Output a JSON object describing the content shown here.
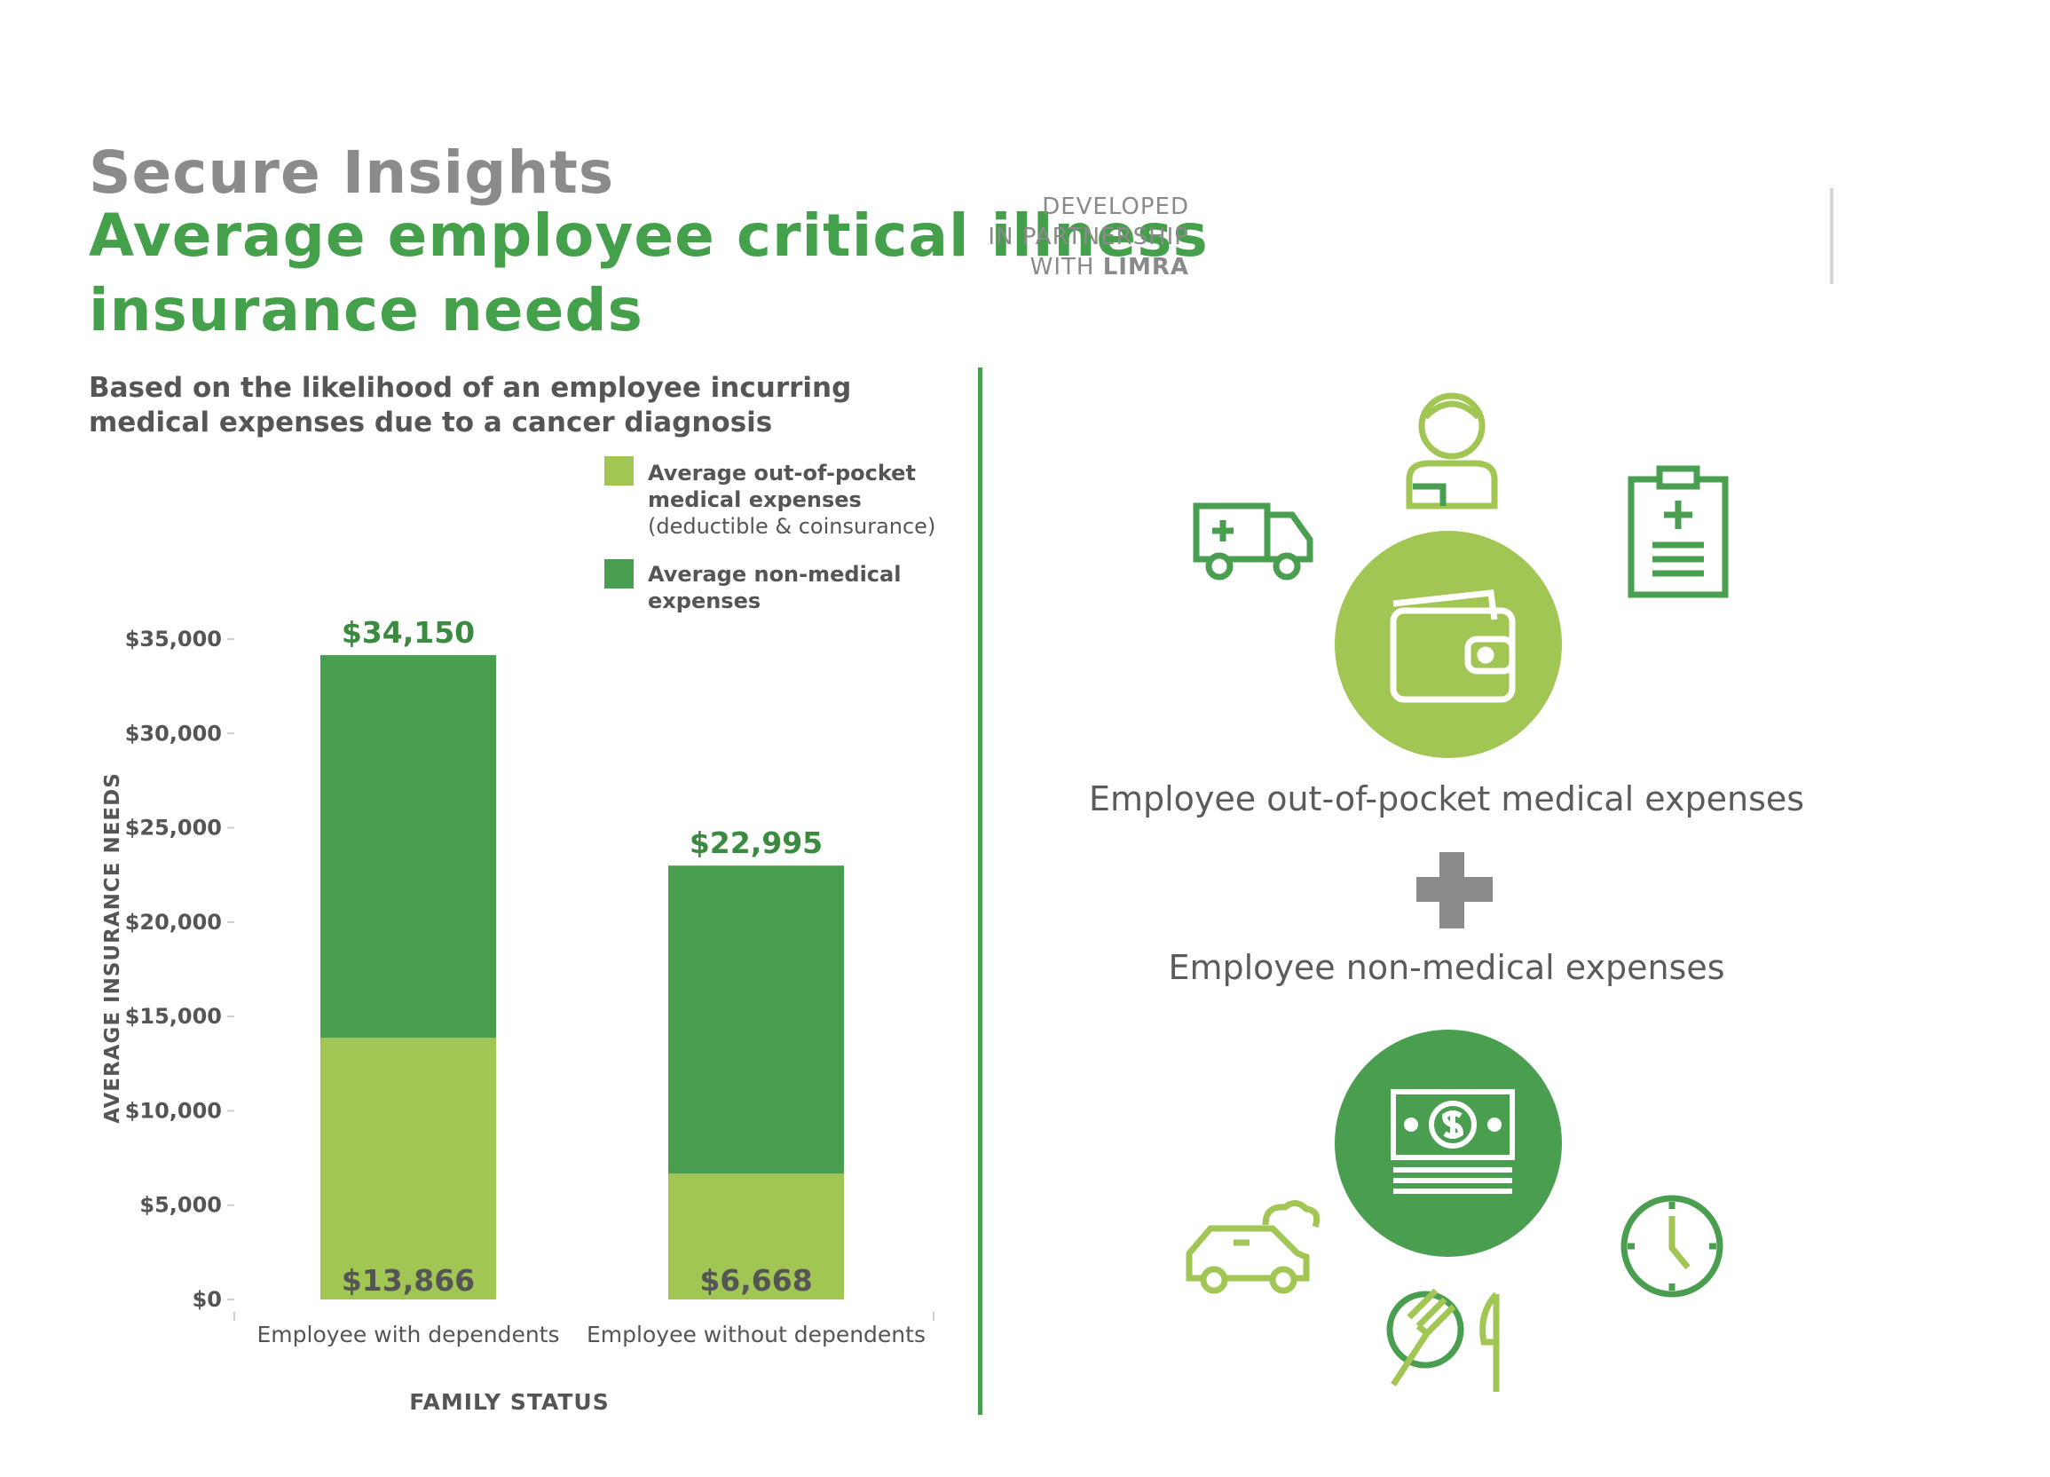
{
  "header": {
    "brand": "Secure Insights",
    "headline": "Average employee critical illness insurance needs",
    "partner_line1": "DEVELOPED",
    "partner_line2": "IN PARTNERSHIP",
    "partner_line3_prefix": "WITH",
    "partner_line3_brand": "LIMRA"
  },
  "subtitle": "Based on the likelihood of an employee incurring medical expenses due to a cancer diagnosis",
  "legend": [
    {
      "title": "Average out-of-pocket medical expenses",
      "note": "(deductible & coinsurance)",
      "color": "#a2c654"
    },
    {
      "title": "Average non-medical expenses",
      "note": "",
      "color": "#4a9e4f"
    }
  ],
  "chart_data": {
    "type": "bar",
    "stacked": true,
    "categories": [
      "Employee with dependents",
      "Employee without dependents"
    ],
    "series": [
      {
        "name": "Average out-of-pocket medical expenses (deductible & coinsurance)",
        "values": [
          13866,
          6668
        ],
        "color": "#a2c654"
      },
      {
        "name": "Average non-medical expenses",
        "values": [
          20284,
          16327
        ],
        "color": "#4a9e4f"
      }
    ],
    "totals": [
      34150,
      22995
    ],
    "total_labels": [
      "$34,150",
      "$22,995"
    ],
    "base_labels": [
      "$13,866",
      "$6,668"
    ],
    "xlabel": "FAMILY STATUS",
    "ylabel": "AVERAGE INSURANCE NEEDS",
    "ylim": [
      0,
      35000
    ],
    "yticks": [
      0,
      5000,
      10000,
      15000,
      20000,
      25000,
      30000,
      35000
    ],
    "ytick_labels": [
      "$0",
      "$5,000",
      "$10,000",
      "$15,000",
      "$20,000",
      "$25,000",
      "$30,000",
      "$35,000"
    ],
    "grid": false,
    "legend_position": "top-right"
  },
  "right_panel": {
    "caption_medical": "Employee out-of-pocket medical expenses",
    "caption_nonmedical": "Employee non-medical expenses",
    "icons_medical": [
      "ambulance-icon",
      "patient-icon",
      "clipboard-icon",
      "wallet-icon"
    ],
    "icons_nonmedical": [
      "car-icon",
      "money-icon",
      "clock-icon",
      "dining-icon"
    ],
    "plus_icon": "plus-icon",
    "colors": {
      "light_green": "#a2c654",
      "dark_green": "#4a9e4f",
      "gray": "#8b8b8b"
    }
  }
}
